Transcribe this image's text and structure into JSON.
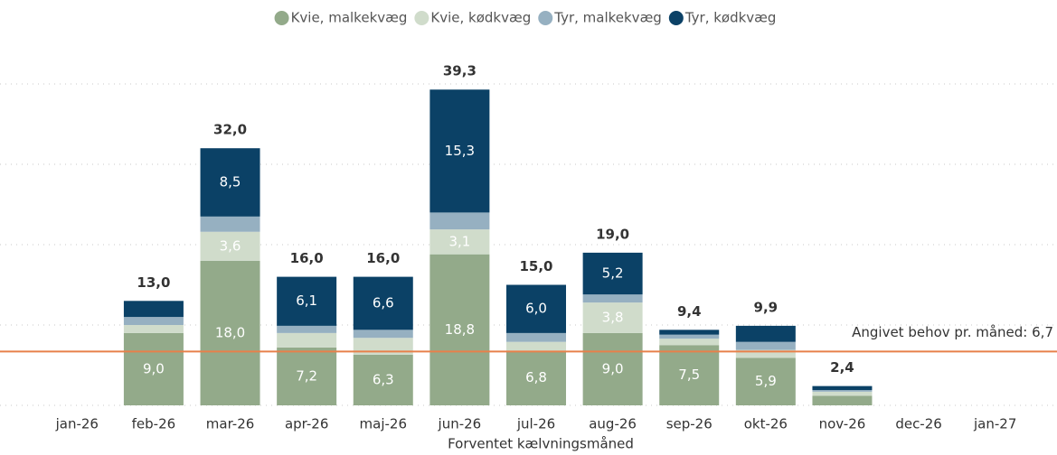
{
  "chart_data": {
    "type": "stacked_bar",
    "x_label": "Forventet kælvningsmåned",
    "categories": [
      "jan-26",
      "feb-26",
      "mar-26",
      "apr-26",
      "maj-26",
      "jun-26",
      "jul-26",
      "aug-26",
      "sep-26",
      "okt-26",
      "nov-26",
      "dec-26",
      "jan-27"
    ],
    "series": [
      {
        "name": "Kvie, malkekvæg",
        "color": "#93aa8a",
        "label_color": "#ffffff",
        "values": [
          null,
          9.0,
          18.0,
          7.2,
          6.3,
          18.8,
          6.8,
          9.0,
          7.5,
          5.9,
          1.2,
          null,
          null
        ],
        "value_labels": [
          null,
          "9,0",
          "18,0",
          "7,2",
          "6,3",
          "18,8",
          "6,8",
          "9,0",
          "7,5",
          "5,9",
          null,
          null,
          null
        ]
      },
      {
        "name": "Kvie, kødkvæg",
        "color": "#d0dccb",
        "label_color": "#ffffff",
        "values": [
          null,
          1.0,
          3.6,
          1.8,
          2.1,
          3.1,
          1.1,
          3.8,
          0.8,
          1.0,
          0.5,
          null,
          null
        ],
        "value_labels": [
          null,
          null,
          "3,6",
          null,
          null,
          "3,1",
          null,
          "3,8",
          null,
          null,
          null,
          null,
          null
        ]
      },
      {
        "name": "Tyr, malkekvæg",
        "color": "#96b0c1",
        "label_color": "#ffffff",
        "values": [
          null,
          1.0,
          1.9,
          0.9,
          1.0,
          2.1,
          1.1,
          1.0,
          0.5,
          1.0,
          0.2,
          null,
          null
        ],
        "value_labels": [
          null,
          null,
          null,
          null,
          null,
          null,
          null,
          null,
          null,
          null,
          null,
          null,
          null
        ]
      },
      {
        "name": "Tyr, kødkvæg",
        "color": "#0b4166",
        "label_color": "#ffffff",
        "values": [
          null,
          2.0,
          8.5,
          6.1,
          6.6,
          15.3,
          6.0,
          5.2,
          0.6,
          2.0,
          0.5,
          null,
          null
        ],
        "value_labels": [
          null,
          null,
          "8,5",
          "6,1",
          "6,6",
          "15,3",
          "6,0",
          "5,2",
          null,
          null,
          null,
          null,
          null
        ]
      }
    ],
    "totals": [
      null,
      13.0,
      32.0,
      16.0,
      16.0,
      39.3,
      15.0,
      19.0,
      9.4,
      9.9,
      2.4,
      null,
      null
    ],
    "total_labels": [
      null,
      "13,0",
      "32,0",
      "16,0",
      "16,0",
      "39,3",
      "15,0",
      "19,0",
      "9,4",
      "9,9",
      "2,4",
      null,
      null
    ],
    "reference_line": {
      "value": 6.7,
      "label": "Angivet behov pr. måned: 6,7",
      "color": "#e8804a"
    },
    "ylim": [
      0,
      40
    ],
    "yticks": [
      0,
      10,
      20,
      30,
      40
    ],
    "grid": true,
    "legend": "top"
  }
}
